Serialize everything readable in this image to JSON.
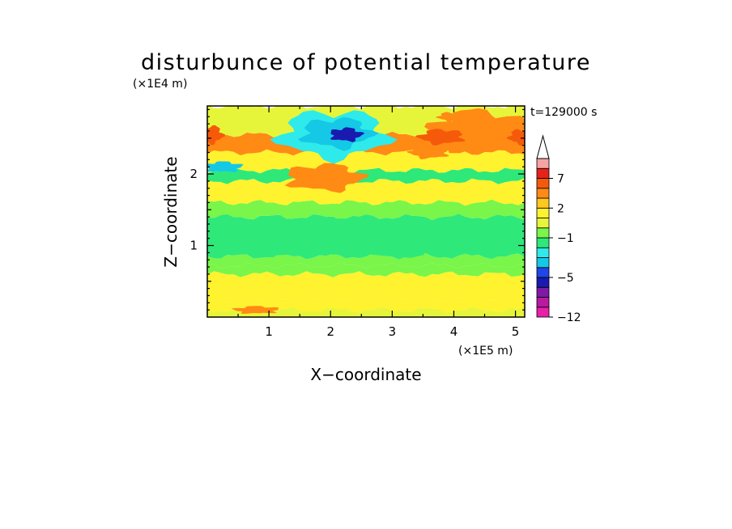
{
  "chart_data": {
    "type": "heatmap",
    "title": "disturbunce of potential temperature",
    "time_label": "t=129000 s",
    "xlabel": "X−coordinate",
    "ylabel": "Z−coordinate",
    "x_unit": "(×1E5 m)",
    "y_unit": "(×1E4 m)",
    "xlim": [
      0,
      5.15
    ],
    "ylim": [
      0,
      2.95
    ],
    "x_ticks": [
      "1",
      "2",
      "3",
      "4",
      "5"
    ],
    "y_ticks": [
      "1",
      "2"
    ],
    "colorbar": {
      "levels": [
        -12,
        -10,
        -8,
        -6,
        -5,
        -4,
        -3,
        -2,
        -1,
        0,
        1,
        2,
        3,
        5,
        7,
        9,
        11
      ],
      "labels": [
        "−12",
        "−5",
        "−1",
        "2",
        "7"
      ],
      "colors": [
        "#e81fa8",
        "#b81aa0",
        "#7d1aa6",
        "#1a1ab0",
        "#1f46e6",
        "#14c8e6",
        "#2eeaea",
        "#2ee87a",
        "#7af54a",
        "#e6f53a",
        "#fff22e",
        "#ffc81f",
        "#ff8a14",
        "#f55a0a",
        "#e6231a",
        "#f5a3a3"
      ],
      "extend": "max"
    },
    "bands": [
      {
        "z": [
          0.0,
          0.1
        ],
        "level": 0
      },
      {
        "z": [
          0.1,
          0.25
        ],
        "level": 1
      },
      {
        "z": [
          0.25,
          0.6
        ],
        "level": 1
      },
      {
        "z": [
          0.6,
          0.72
        ],
        "level": -1
      },
      {
        "z": [
          0.72,
          0.85
        ],
        "level": -1
      },
      {
        "z": [
          0.85,
          1.4
        ],
        "level": -2
      },
      {
        "z": [
          1.4,
          1.6
        ],
        "level": -1
      },
      {
        "z": [
          1.6,
          1.9
        ],
        "level": 1
      },
      {
        "z": [
          1.9,
          2.05
        ],
        "level": -2
      },
      {
        "z": [
          2.05,
          2.3
        ],
        "level": 1
      },
      {
        "z": [
          2.3,
          2.55
        ],
        "level": 3
      },
      {
        "z": [
          2.55,
          2.95
        ],
        "level": 0
      }
    ],
    "features": [
      {
        "x": 2.05,
        "z": 2.55,
        "rx": 0.85,
        "rz": 0.32,
        "level": -3
      },
      {
        "x": 2.1,
        "z": 2.57,
        "rx": 0.55,
        "rz": 0.2,
        "level": -4
      },
      {
        "x": 2.25,
        "z": 2.55,
        "rx": 0.25,
        "rz": 0.09,
        "level": -6
      },
      {
        "x": 0.25,
        "z": 2.1,
        "rx": 0.3,
        "rz": 0.07,
        "level": -4
      },
      {
        "x": 4.4,
        "z": 2.6,
        "rx": 0.75,
        "rz": 0.28,
        "level": 4
      },
      {
        "x": 3.8,
        "z": 2.52,
        "rx": 0.35,
        "rz": 0.1,
        "level": 5
      },
      {
        "x": 5.1,
        "z": 2.52,
        "rx": 0.2,
        "rz": 0.1,
        "level": 5
      },
      {
        "x": 0.05,
        "z": 2.55,
        "rx": 0.2,
        "rz": 0.12,
        "level": 5
      },
      {
        "x": 1.9,
        "z": 1.95,
        "rx": 0.6,
        "rz": 0.18,
        "level": 4
      },
      {
        "x": 2.3,
        "z": 1.1,
        "rx": 1.6,
        "rz": 0.25,
        "level": -2
      },
      {
        "x": 0.8,
        "z": 0.1,
        "rx": 0.35,
        "rz": 0.05,
        "level": 3
      },
      {
        "x": 3.6,
        "z": 2.3,
        "rx": 0.3,
        "rz": 0.08,
        "level": 3
      },
      {
        "x": 3.95,
        "z": 2.8,
        "rx": 0.2,
        "rz": 0.06,
        "level": 3
      }
    ]
  }
}
